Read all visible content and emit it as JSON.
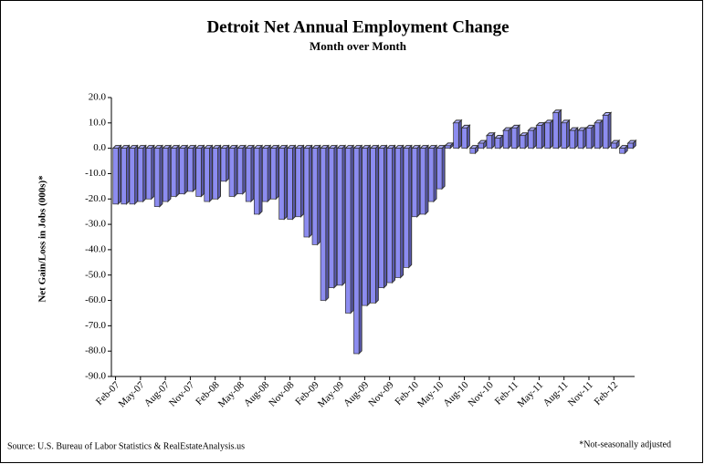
{
  "chart_data": {
    "type": "bar",
    "title": "Detroit Net Annual  Employment  Change",
    "subtitle": "Month over Month",
    "y_label": "Net Gain/Loss in Jobs (000s)*",
    "source": "Source: U.S. Bureau of Labor Statistics & RealEstateAnalysis.us",
    "note": "*Not-seasonally adjusted",
    "color": "#8c8cf0",
    "categories": [
      "Feb-07",
      null,
      null,
      "May-07",
      null,
      null,
      "Aug-07",
      null,
      null,
      "Nov-07",
      null,
      null,
      "Feb-08",
      null,
      null,
      "May-08",
      null,
      null,
      "Aug-08",
      null,
      null,
      "Nov-08",
      null,
      null,
      "Feb-09",
      null,
      null,
      "May-09",
      null,
      null,
      "Aug-09",
      null,
      null,
      "Nov-09",
      null,
      null,
      "Feb-10",
      null,
      null,
      "May-10",
      null,
      null,
      "Aug-10",
      null,
      null,
      "Nov-10",
      null,
      null,
      "Feb-11",
      null,
      null,
      "May-11",
      null,
      null,
      "Aug-11",
      null,
      null,
      "Nov-11",
      null,
      null,
      "Feb-12",
      null,
      null
    ],
    "values": [
      -22,
      -22,
      -22,
      -21,
      -20,
      -23,
      -21,
      -19,
      -18,
      -17,
      -19,
      -21,
      -20,
      -13,
      -19,
      -18,
      -21,
      -26,
      -21,
      -20,
      -28,
      -28,
      -27,
      -35,
      -38,
      -60,
      -55,
      -54,
      -65,
      -81,
      -62,
      -61,
      -55,
      -53,
      -51,
      -47,
      -27,
      -26,
      -21,
      -16,
      1,
      10,
      8,
      -2,
      2,
      5,
      4,
      7,
      8,
      5,
      7,
      9,
      10,
      14,
      10,
      7,
      7,
      8,
      10,
      13,
      2,
      -2,
      2
    ],
    "ylim": [
      -90,
      20
    ],
    "yticks": [
      {
        "value": -90,
        "label": "-90.0"
      },
      {
        "value": -80,
        "label": "-80.0"
      },
      {
        "value": -70,
        "label": "-70.0"
      },
      {
        "value": -60,
        "label": "-60.0"
      },
      {
        "value": -50,
        "label": "-50.0"
      },
      {
        "value": -40,
        "label": "-40.0"
      },
      {
        "value": -30,
        "label": "-30.0"
      },
      {
        "value": -20,
        "label": "-20.0"
      },
      {
        "value": -10,
        "label": "-10.0"
      },
      {
        "value": 0,
        "label": "0.0"
      },
      {
        "value": 10,
        "label": "10.0"
      },
      {
        "value": 20,
        "label": "20.0"
      }
    ],
    "grid": false
  }
}
